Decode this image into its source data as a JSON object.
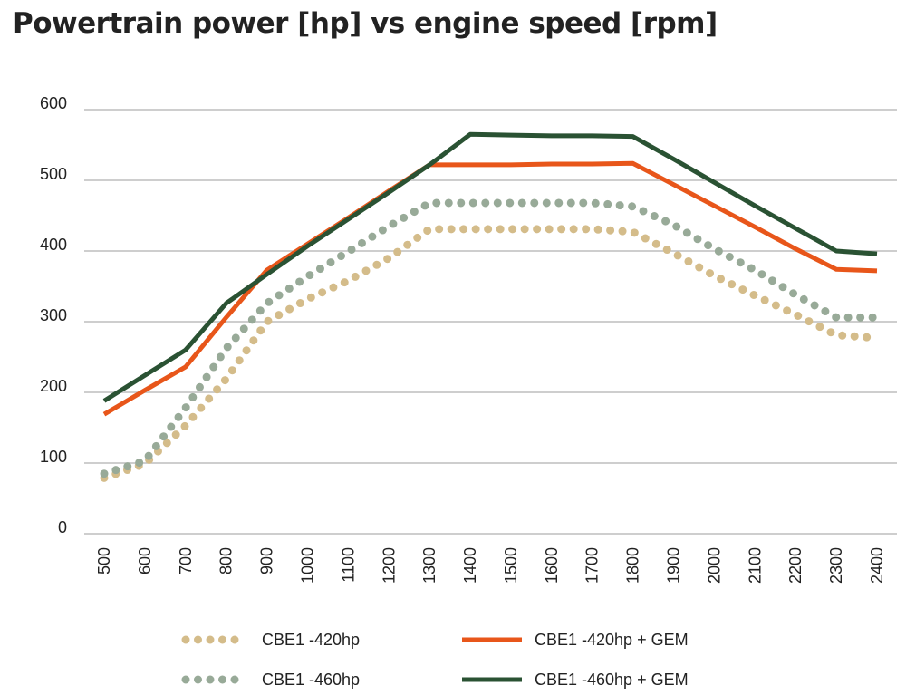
{
  "chart_data": {
    "type": "line",
    "title": "Powertrain power [hp] vs engine speed [rpm]",
    "xlabel": "",
    "ylabel": "",
    "categories": [
      "500",
      "600",
      "700",
      "800",
      "900",
      "1000",
      "1100",
      "1200",
      "1300",
      "1400",
      "1500",
      "1600",
      "1700",
      "1800",
      "1900",
      "2000",
      "2100",
      "2200",
      "2300",
      "2400"
    ],
    "ylim": [
      0,
      600
    ],
    "yticks": [
      "0",
      "100",
      "200",
      "300",
      "400",
      "500",
      "600"
    ],
    "grid": true,
    "legend_position": "bottom",
    "series": [
      {
        "name": "CBE1 -420hp",
        "style": "dotted",
        "color": "#d4bc8a",
        "values": [
          79,
          99,
          153,
          219,
          300,
          332,
          358,
          390,
          431,
          431,
          431,
          431,
          431,
          427,
          397,
          365,
          337,
          310,
          281,
          277
        ]
      },
      {
        "name": "CBE1 -420hp + GEM",
        "style": "solid",
        "color": "#e8561a",
        "values": [
          169,
          203,
          236,
          306,
          373,
          410,
          447,
          485,
          522,
          522,
          522,
          523,
          523,
          524,
          494,
          464,
          434,
          403,
          374,
          372
        ]
      },
      {
        "name": "CBE1 -460hp",
        "style": "dotted",
        "color": "#98aa98",
        "values": [
          85,
          103,
          178,
          262,
          326,
          364,
          399,
          435,
          468,
          468,
          468,
          468,
          468,
          463,
          437,
          403,
          373,
          338,
          306,
          306
        ]
      },
      {
        "name": "CBE1 -460hp + GEM",
        "style": "solid",
        "color": "#2a5233",
        "values": [
          188,
          224,
          260,
          326,
          367,
          407,
          445,
          483,
          522,
          565,
          564,
          563,
          563,
          562,
          530,
          497,
          464,
          432,
          400,
          396
        ]
      }
    ]
  }
}
